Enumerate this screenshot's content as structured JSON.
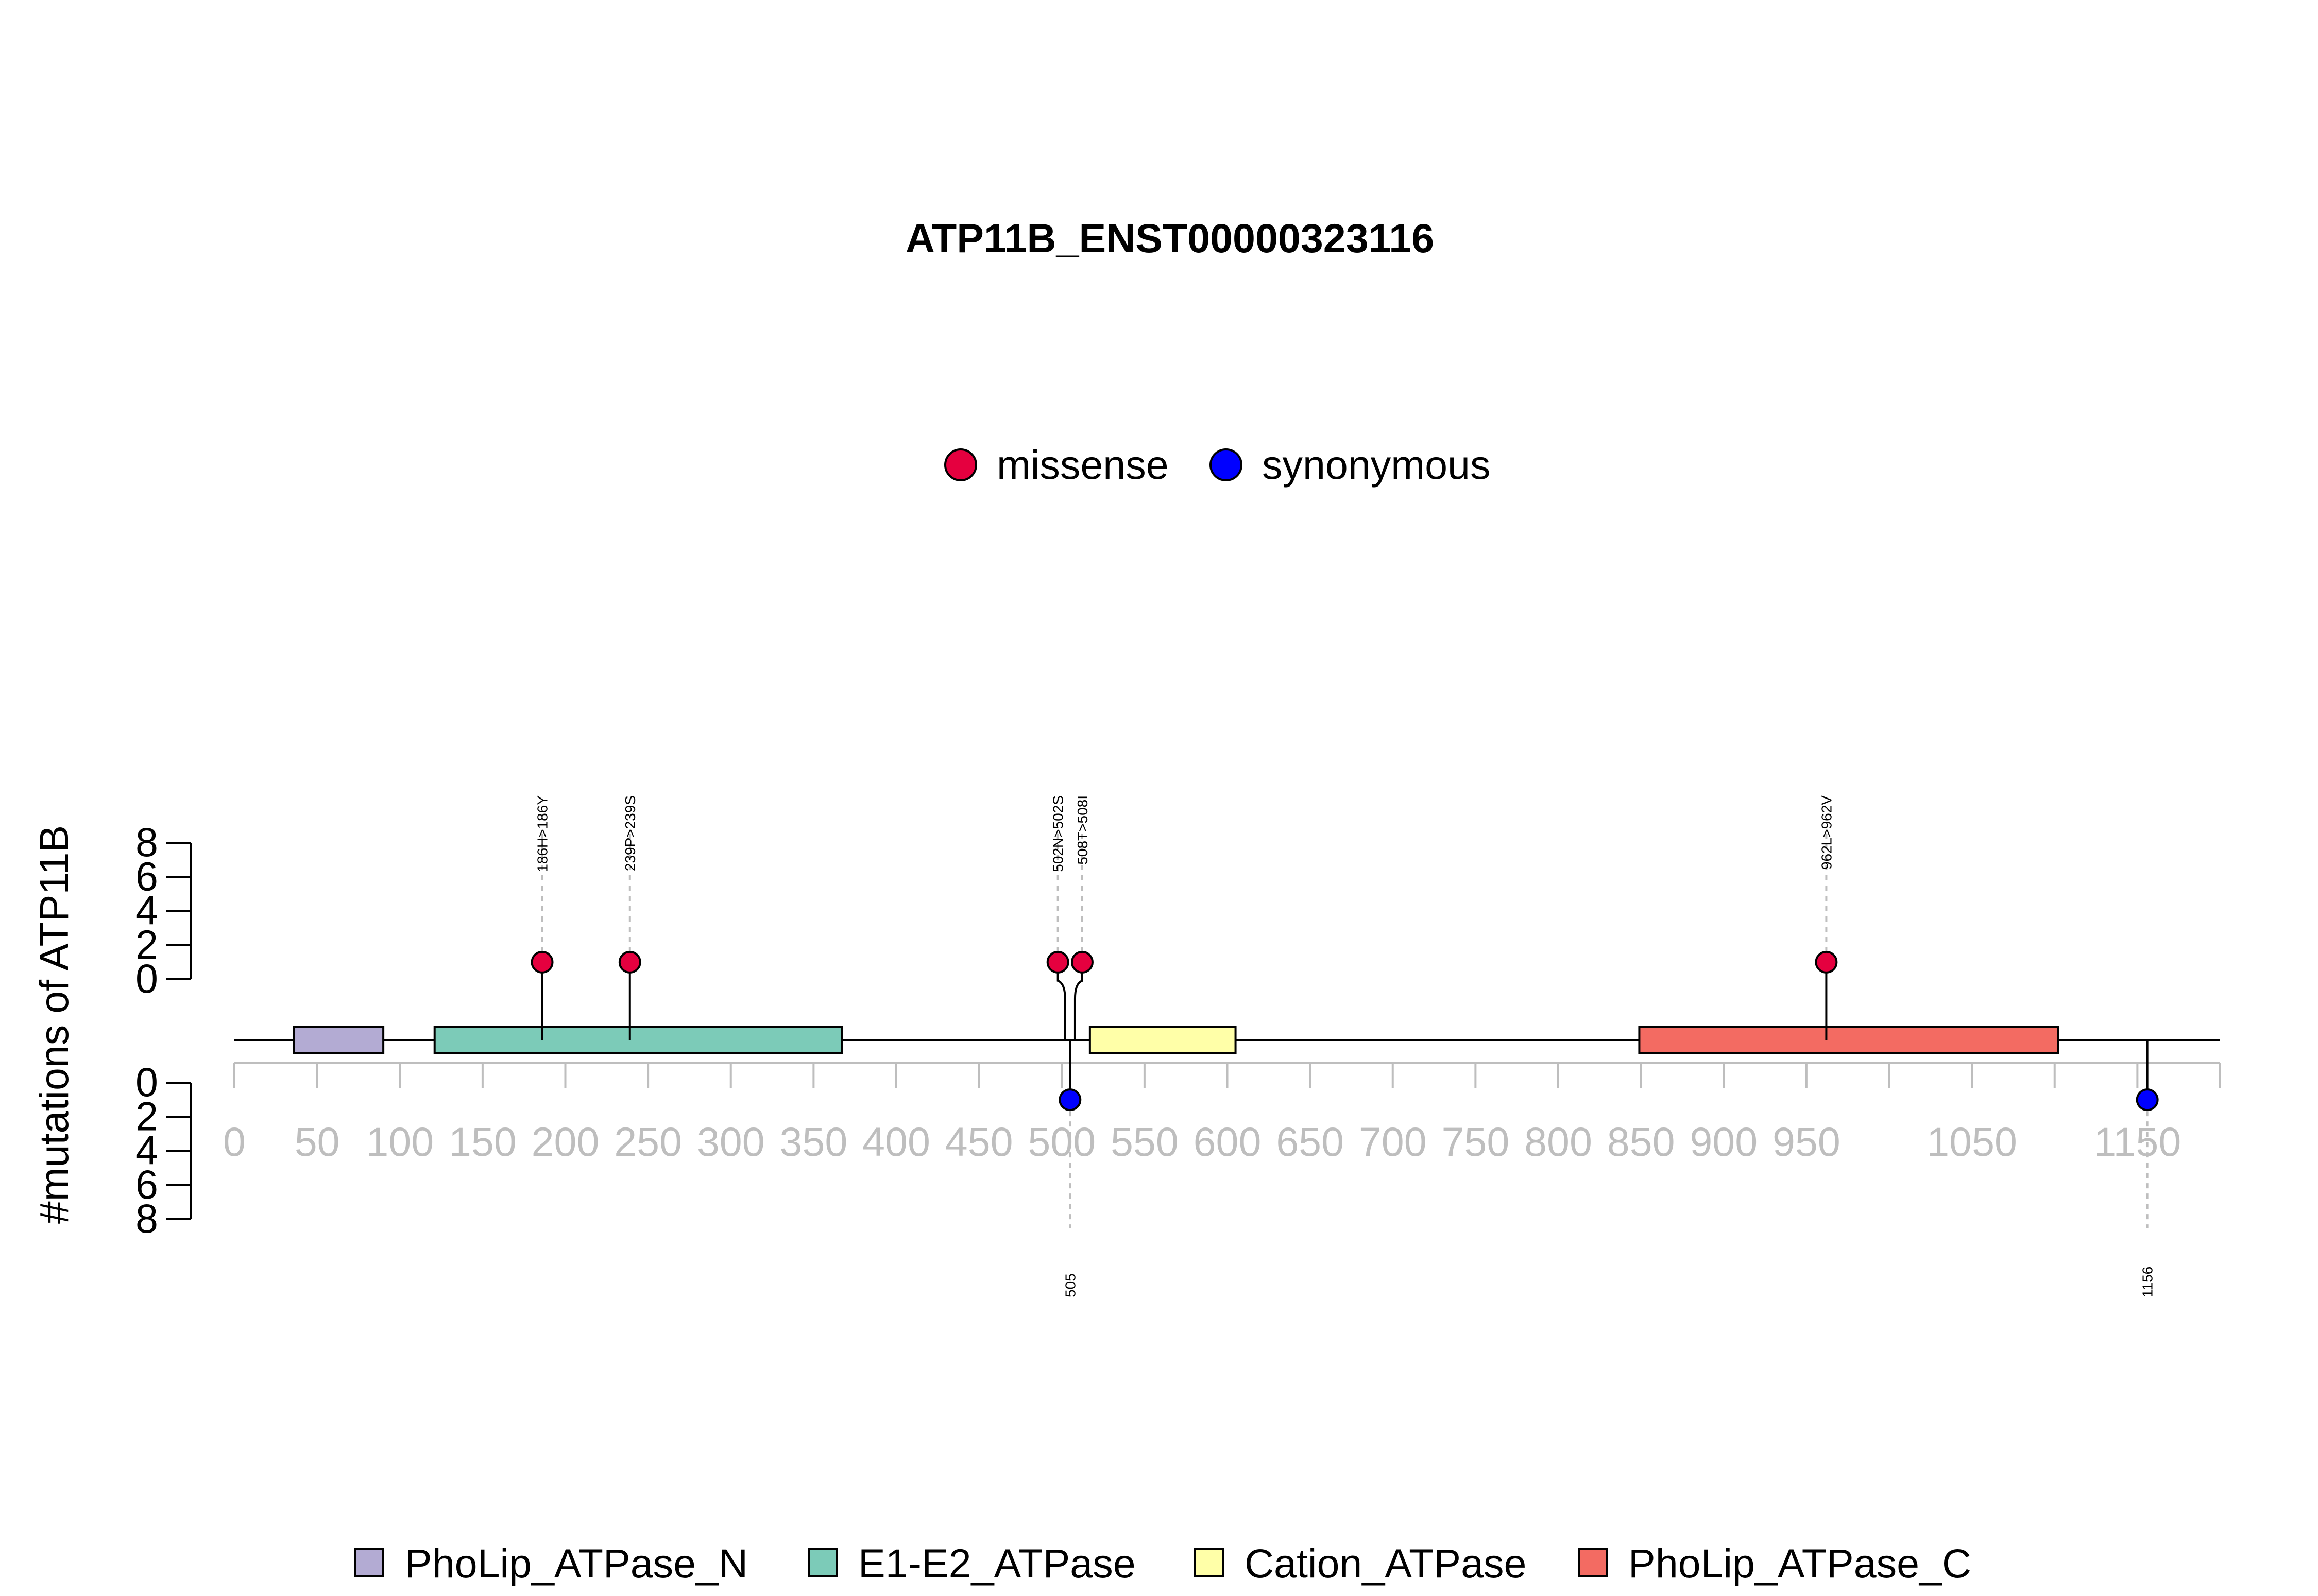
{
  "chart_data": {
    "type": "lollipop",
    "title": "ATP11B_ENST00000323116",
    "ylabel": "#mutations of ATP11B",
    "xlim": [
      0,
      1200
    ],
    "x_ticks": [
      "0",
      "50",
      "100",
      "150",
      "200",
      "250",
      "300",
      "350",
      "400",
      "450",
      "500",
      "550",
      "600",
      "650",
      "700",
      "750",
      "800",
      "850",
      "900",
      "950",
      "1050",
      "1150"
    ],
    "x_tick_values": [
      0,
      50,
      100,
      150,
      200,
      250,
      300,
      350,
      400,
      450,
      500,
      550,
      600,
      650,
      700,
      750,
      800,
      850,
      900,
      950,
      1050,
      1150
    ],
    "x_minor_ticks": [
      0,
      50,
      100,
      150,
      200,
      250,
      300,
      350,
      400,
      450,
      500,
      550,
      600,
      650,
      700,
      750,
      800,
      850,
      900,
      950,
      1000,
      1050,
      1100,
      1150,
      1200
    ],
    "y_ticks": [
      "0",
      "2",
      "4",
      "6",
      "8"
    ],
    "y_tick_values": [
      0,
      2,
      4,
      6,
      8
    ],
    "legend_mutations": [
      {
        "name": "missense",
        "color": "#e5003f"
      },
      {
        "name": "synonymous",
        "color": "#0000ff"
      }
    ],
    "mutations_above": [
      {
        "position": 186,
        "label": "186H>186Y",
        "count": 1,
        "type": "missense"
      },
      {
        "position": 239,
        "label": "239P>239S",
        "count": 1,
        "type": "missense"
      },
      {
        "position": 502,
        "label": "502N>502S",
        "count": 1,
        "type": "missense"
      },
      {
        "position": 508,
        "label": "508T>508I",
        "count": 1,
        "type": "missense"
      },
      {
        "position": 962,
        "label": "962L>962V",
        "count": 1,
        "type": "missense"
      }
    ],
    "mutations_below": [
      {
        "position": 505,
        "label": "505",
        "count": 1,
        "type": "synonymous"
      },
      {
        "position": 1156,
        "label": "1156",
        "count": 1,
        "type": "synonymous"
      }
    ],
    "domains": [
      {
        "name": "PhoLip_ATPase_N",
        "start": 36,
        "end": 90,
        "color": "#b3abd3"
      },
      {
        "name": "E1-E2_ATPase",
        "start": 121,
        "end": 367,
        "color": "#7ccbb8"
      },
      {
        "name": "Cation_ATPase",
        "start": 517,
        "end": 605,
        "color": "#ffffa8"
      },
      {
        "name": "PhoLip_ATPase_C",
        "start": 849,
        "end": 1102,
        "color": "#f36b62"
      }
    ]
  }
}
